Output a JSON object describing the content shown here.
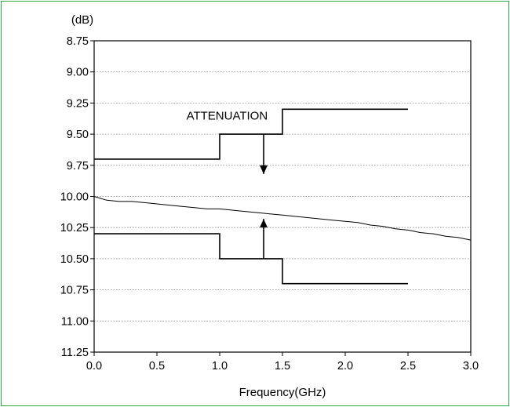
{
  "chart_data": {
    "type": "line",
    "title": "",
    "xlabel": "Frequency(GHz)",
    "ylabel": "(dB)",
    "xlim": [
      0.0,
      3.0
    ],
    "ylim": [
      8.75,
      11.25
    ],
    "y_inverted": true,
    "x_ticks": [
      "0.0",
      "0.5",
      "1.0",
      "1.5",
      "2.0",
      "2.5",
      "3.0"
    ],
    "y_ticks": [
      "8.75",
      "9.00",
      "9.25",
      "9.50",
      "9.75",
      "10.00",
      "10.25",
      "10.50",
      "10.75",
      "11.00",
      "11.25"
    ],
    "grid": "horizontal dotted",
    "annotations": [
      {
        "text": "ATTENUATION",
        "x": 1.37,
        "y": 9.35
      }
    ],
    "series": [
      {
        "role": "measurement",
        "x": [
          0.0,
          0.1,
          0.2,
          0.3,
          0.4,
          0.5,
          0.6,
          0.7,
          0.8,
          0.9,
          1.0,
          1.1,
          1.2,
          1.3,
          1.4,
          1.5,
          1.6,
          1.7,
          1.8,
          1.9,
          2.0,
          2.1,
          2.2,
          2.3,
          2.4,
          2.5,
          2.6,
          2.7,
          2.8,
          2.9,
          3.0
        ],
        "y": [
          10.0,
          10.03,
          10.04,
          10.04,
          10.05,
          10.06,
          10.07,
          10.08,
          10.09,
          10.1,
          10.1,
          10.11,
          10.12,
          10.13,
          10.14,
          10.15,
          10.16,
          10.17,
          10.18,
          10.19,
          10.2,
          10.21,
          10.23,
          10.24,
          10.26,
          10.27,
          10.29,
          10.3,
          10.32,
          10.33,
          10.35
        ]
      },
      {
        "role": "upper-limit",
        "x": [
          0.0,
          1.0,
          1.0,
          1.5,
          1.5,
          2.5
        ],
        "y": [
          9.7,
          9.7,
          9.5,
          9.5,
          9.3,
          9.3
        ]
      },
      {
        "role": "lower-limit",
        "x": [
          0.0,
          1.0,
          1.0,
          1.5,
          1.5,
          2.5
        ],
        "y": [
          10.3,
          10.3,
          10.5,
          10.5,
          10.7,
          10.7
        ]
      }
    ],
    "arrows": [
      {
        "x": 1.35,
        "from": 9.5,
        "to": 9.82,
        "direction": "down"
      },
      {
        "x": 1.35,
        "from": 10.5,
        "to": 10.18,
        "direction": "up"
      }
    ]
  }
}
